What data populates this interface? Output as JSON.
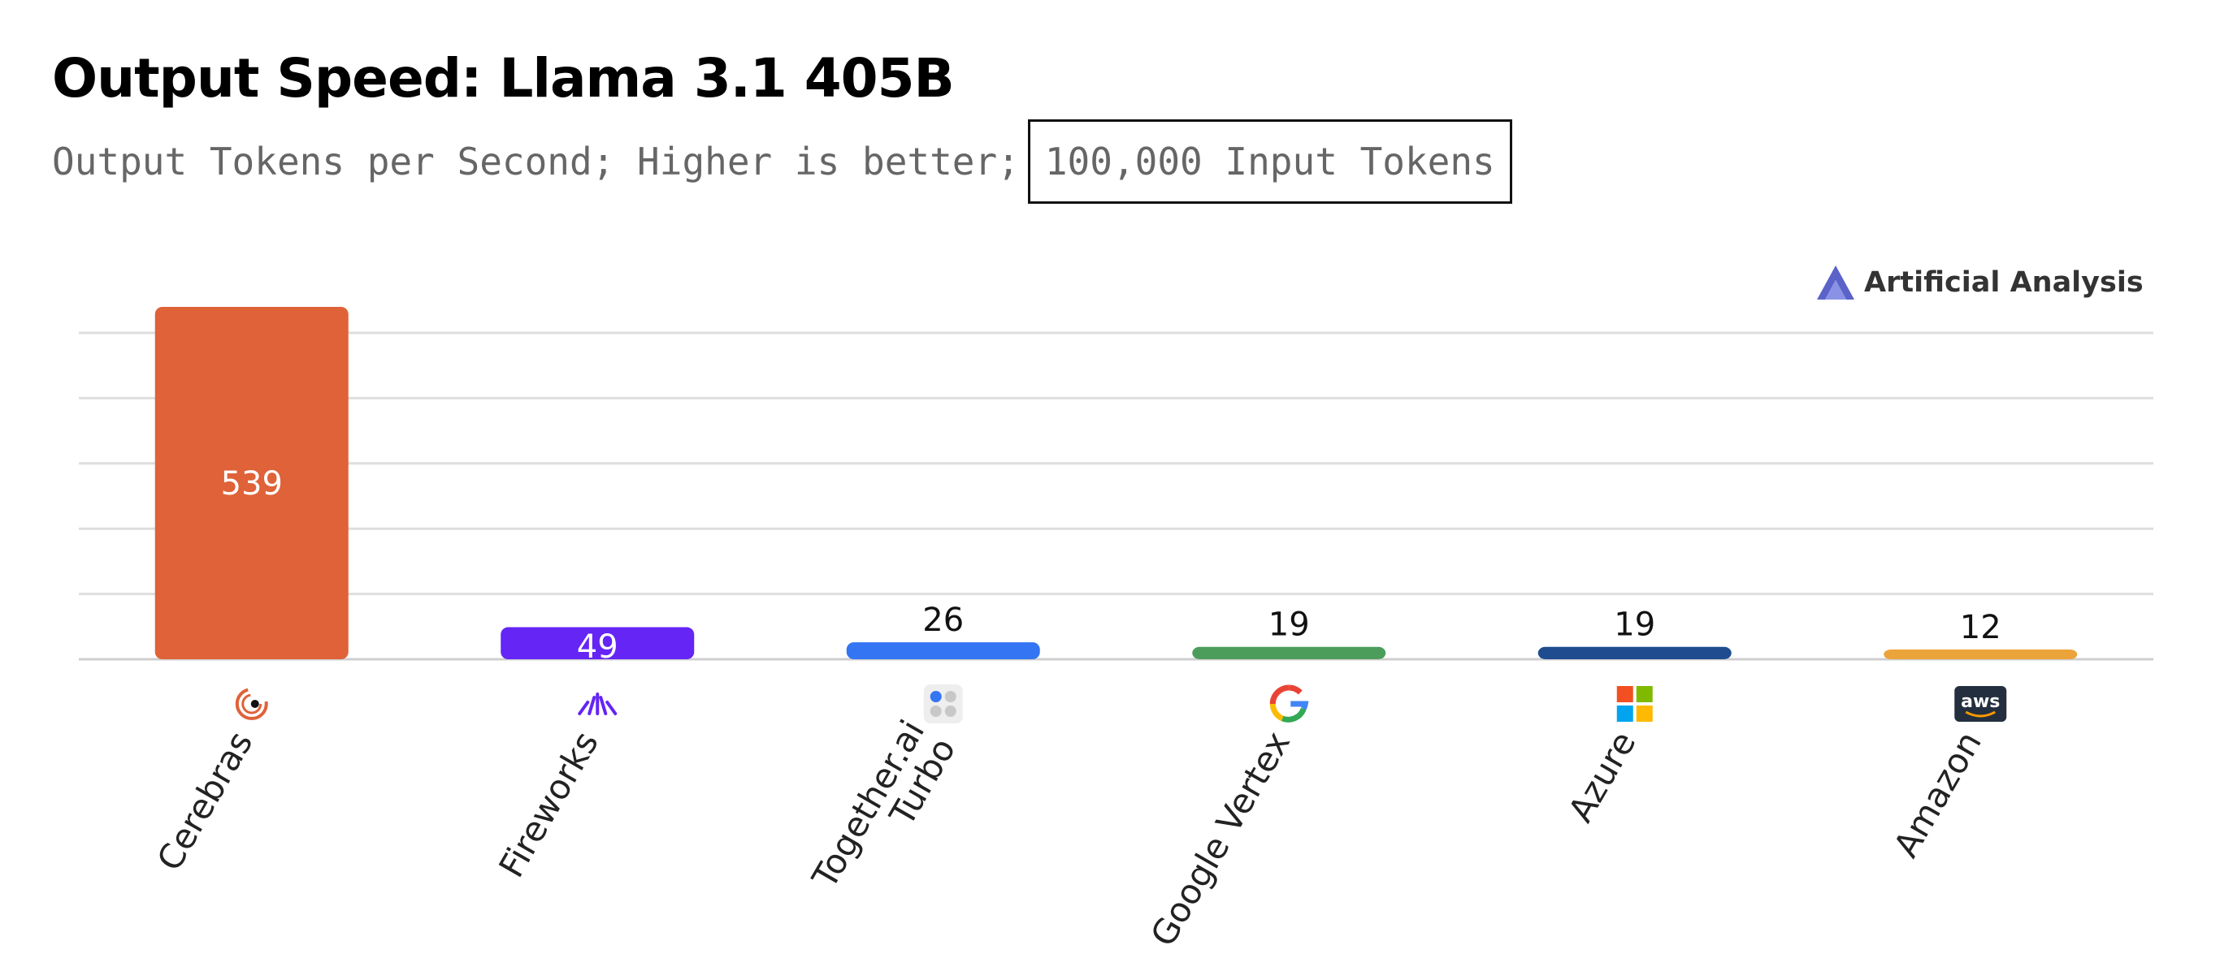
{
  "title": "Output Speed: Llama 3.1 405B",
  "subtitle_prefix": "Output Tokens per Second; Higher is better;",
  "subtitle_boxed": "100,000 Input Tokens",
  "brand": {
    "name": "Artificial Analysis",
    "icon": "artificial-analysis-logo"
  },
  "chart_data": {
    "type": "bar",
    "title": "Output Speed: Llama 3.1 405B",
    "categories": [
      "Cerebras",
      "Fireworks",
      "Together.ai Turbo",
      "Google Vertex",
      "Azure",
      "Amazon"
    ],
    "values": [
      539,
      49,
      26,
      19,
      19,
      12
    ],
    "colors": [
      "#DF6239",
      "#6425F5",
      "#3375F2",
      "#4C9D5C",
      "#1F4C8F",
      "#EBA43A"
    ],
    "icons": [
      "cerebras-icon",
      "fireworks-icon",
      "together-ai-icon",
      "google-icon",
      "microsoft-icon",
      "aws-icon"
    ],
    "xlabel": "",
    "ylabel": "",
    "ylim": [
      0,
      539
    ],
    "grid": true,
    "legend": "none"
  }
}
